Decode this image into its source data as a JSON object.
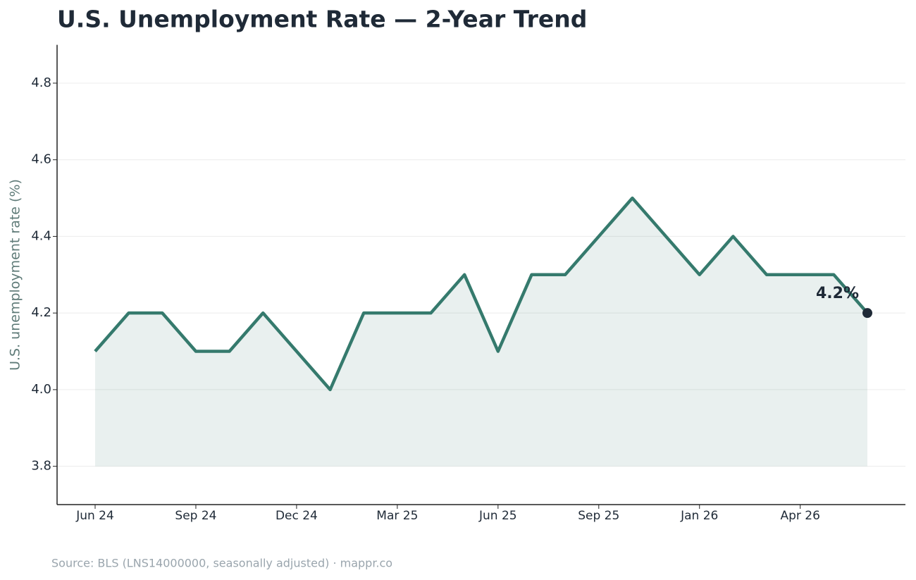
{
  "chart_data": {
    "type": "line",
    "title": "U.S. Unemployment Rate — 2-Year Trend",
    "y_label": "U.S. unemployment rate (%)",
    "source": "Source: BLS (LNS14000000, seasonally adjusted) · mappr.co",
    "annotation": "4.2%",
    "categories": [
      "Jun 24",
      null,
      null,
      "Sep 24",
      null,
      null,
      "Dec 24",
      null,
      null,
      "Mar 25",
      null,
      null,
      "Jun 25",
      null,
      null,
      "Sep 25",
      null,
      null,
      "Jan 26",
      null,
      null,
      "Apr 26",
      null,
      null
    ],
    "series": [
      {
        "name": "U.S. unemployment rate",
        "color": "#357a6d",
        "values": [
          4.1,
          4.2,
          4.2,
          4.1,
          4.1,
          4.2,
          4.1,
          4.0,
          4.2,
          4.2,
          4.2,
          4.3,
          4.1,
          4.3,
          4.3,
          4.4,
          4.5,
          4.4,
          4.3,
          4.4,
          4.3,
          4.3,
          4.3,
          4.2
        ]
      }
    ],
    "ylim": [
      3.7,
      4.9
    ],
    "yticks": [
      3.8,
      {
        "value": 4,
        "label": "4.0"
      },
      4.2,
      4.4,
      4.6,
      4.8
    ],
    "grid": true
  }
}
